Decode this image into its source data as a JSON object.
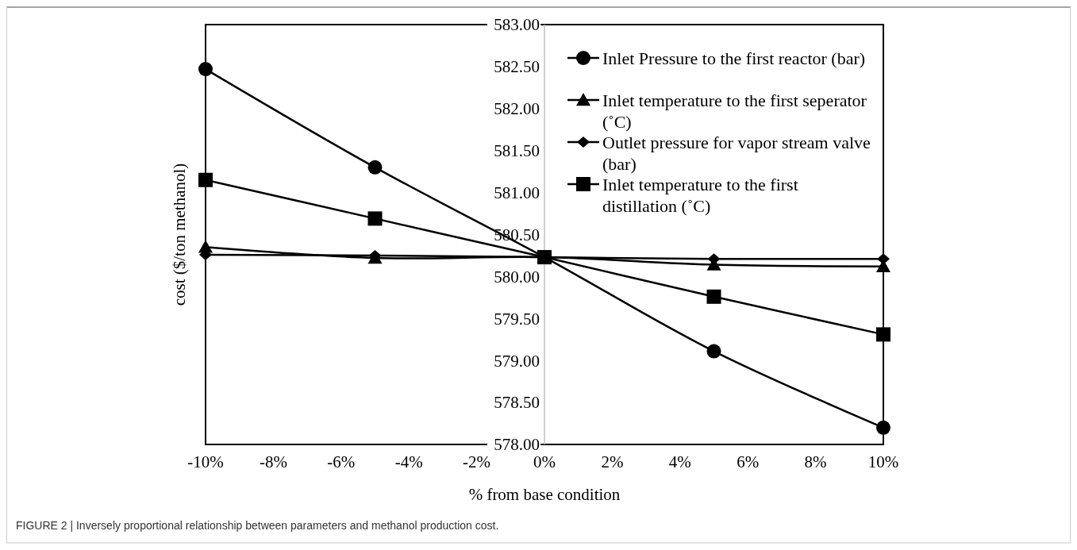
{
  "chart_data": {
    "type": "line",
    "xlabel": "% from base condition",
    "ylabel": "cost ($/ton methanol)",
    "x": [
      -10,
      -5,
      0,
      5,
      10
    ],
    "series": [
      {
        "name": "Inlet Pressure to the first reactor (bar)",
        "color": "#000000",
        "marker": "circle",
        "values": [
          582.47,
          581.3,
          580.23,
          579.11,
          578.2
        ]
      },
      {
        "name": "Inlet temperature to the first seperator (˚C)",
        "color": "#000000",
        "marker": "triangle",
        "values": [
          580.35,
          580.22,
          580.23,
          580.14,
          580.12
        ]
      },
      {
        "name": "Outlet pressure for vapor stream valve (bar)",
        "color": "#000000",
        "marker": "diamond",
        "values": [
          580.26,
          580.25,
          580.23,
          580.21,
          580.21
        ]
      },
      {
        "name": "Inlet temperature to the first distillation (˚C)",
        "color": "#000000",
        "marker": "square",
        "values": [
          581.15,
          580.69,
          580.23,
          579.76,
          579.31
        ]
      }
    ],
    "xlim": [
      -10,
      10
    ],
    "xticks": [
      {
        "value": -10,
        "label": "-10%"
      },
      {
        "value": -8,
        "label": "-8%"
      },
      {
        "value": -6,
        "label": "-6%"
      },
      {
        "value": -4,
        "label": "-4%"
      },
      {
        "value": -2,
        "label": "-2%"
      },
      {
        "value": 0,
        "label": "0%"
      },
      {
        "value": 2,
        "label": "2%"
      },
      {
        "value": 4,
        "label": "4%"
      },
      {
        "value": 6,
        "label": "6%"
      },
      {
        "value": 8,
        "label": "8%"
      },
      {
        "value": 10,
        "label": "10%"
      }
    ],
    "ylim": [
      578,
      583
    ],
    "yticks": [
      {
        "value": 578,
        "label": "578.00"
      },
      {
        "value": 578.5,
        "label": "578.50"
      },
      {
        "value": 579,
        "label": "579.00"
      },
      {
        "value": 579.5,
        "label": "579.50"
      },
      {
        "value": 580,
        "label": "580.00"
      },
      {
        "value": 580.5,
        "label": "580.50"
      },
      {
        "value": 581,
        "label": "581.00"
      },
      {
        "value": 581.5,
        "label": "581.50"
      },
      {
        "value": 582,
        "label": "582.00"
      },
      {
        "value": 582.5,
        "label": "582.50"
      },
      {
        "value": 583,
        "label": "583.00"
      }
    ],
    "grid": false,
    "legend": "top right",
    "line_style": "solid",
    "annotations": [
      "FIGURE 2 | Inversely proportional relationship between parameters and methanol production cost."
    ]
  }
}
